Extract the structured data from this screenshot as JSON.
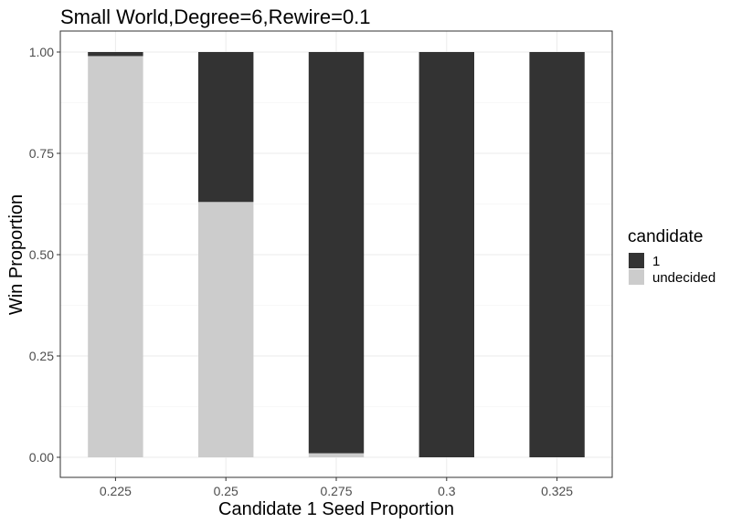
{
  "chart_data": {
    "type": "bar",
    "stacked": true,
    "title": "Small World,Degree=6,Rewire=0.1",
    "xlabel": "Candidate 1 Seed Proportion",
    "ylabel": "Win Proportion",
    "categories": [
      "0.225",
      "0.25",
      "0.275",
      "0.3",
      "0.325"
    ],
    "series": [
      {
        "name": "undecided",
        "color": "#cccccc",
        "values": [
          0.99,
          0.63,
          0.01,
          0.0,
          0.0
        ]
      },
      {
        "name": "1",
        "color": "#333333",
        "values": [
          0.01,
          0.37,
          0.99,
          1.0,
          1.0
        ]
      }
    ],
    "ylim": [
      0,
      1
    ],
    "yticks": [
      "0.00",
      "0.25",
      "0.50",
      "0.75",
      "1.00"
    ],
    "grid": true,
    "legend": {
      "title": "candidate",
      "position": "right",
      "entries": [
        "1",
        "undecided"
      ]
    }
  }
}
